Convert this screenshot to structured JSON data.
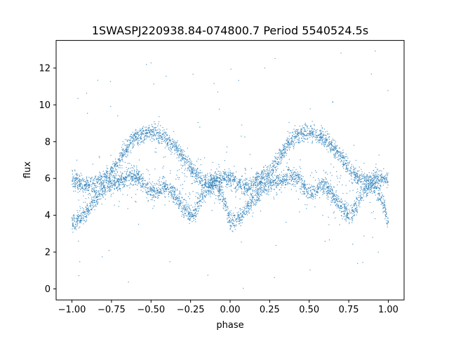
{
  "chart_data": {
    "type": "scatter",
    "title": "1SWASPJ220938.84-074800.7 Period 5540524.5s",
    "xlabel": "phase",
    "ylabel": "flux",
    "xlim": [
      -1.1,
      1.1
    ],
    "ylim": [
      -0.6,
      13.5
    ],
    "xticks": [
      -1.0,
      -0.75,
      -0.5,
      -0.25,
      0.0,
      0.25,
      0.5,
      0.75,
      1.0
    ],
    "xtick_labels": [
      "−1.00",
      "−0.75",
      "−0.50",
      "−0.25",
      "0.00",
      "0.25",
      "0.50",
      "0.75",
      "1.00"
    ],
    "yticks": [
      0,
      2,
      4,
      6,
      8,
      10,
      12
    ],
    "ytick_labels": [
      "0",
      "2",
      "4",
      "6",
      "8",
      "10",
      "12"
    ],
    "grid": false,
    "color": "#1f77b4",
    "series": [
      {
        "x": [
          -1.0,
          -0.975,
          -0.95,
          -0.925,
          -0.9,
          -0.875,
          -0.85,
          -0.825,
          -0.8,
          -0.775,
          -0.75,
          -0.725,
          -0.7,
          -0.675,
          -0.65,
          -0.625,
          -0.6,
          -0.575,
          -0.55,
          -0.525,
          -0.5,
          -0.475,
          -0.45,
          -0.425,
          -0.4,
          -0.375,
          -0.35,
          -0.325,
          -0.3,
          -0.275,
          -0.25,
          -0.225,
          -0.2,
          -0.175,
          -0.15,
          -0.125,
          -0.1,
          -0.075,
          -0.05,
          -0.025,
          0.0,
          0.025,
          0.05,
          0.075,
          0.1,
          0.125,
          0.15,
          0.175,
          0.2,
          0.225,
          0.25,
          0.275,
          0.3,
          0.325,
          0.35,
          0.375,
          0.4,
          0.425,
          0.45,
          0.475,
          0.5,
          0.525,
          0.55,
          0.575,
          0.6,
          0.625,
          0.65,
          0.675,
          0.7,
          0.725,
          0.75,
          0.775,
          0.8,
          0.825,
          0.85,
          0.875,
          0.9,
          0.925,
          0.95,
          0.975,
          1.0
        ],
        "y_upper": [
          6.0,
          5.9,
          5.7,
          5.6,
          5.5,
          5.6,
          5.7,
          5.9,
          6.0,
          6.2,
          6.3,
          6.6,
          7.0,
          7.4,
          7.7,
          8.0,
          8.2,
          8.3,
          8.4,
          8.5,
          8.5,
          8.5,
          8.4,
          8.3,
          8.1,
          7.9,
          7.7,
          7.5,
          7.2,
          6.9,
          6.6,
          6.3,
          6.1,
          5.9,
          5.8,
          5.8,
          5.9,
          6.0,
          6.0,
          6.0,
          6.0,
          5.9,
          5.7,
          5.6,
          5.5,
          5.6,
          5.7,
          5.9,
          6.0,
          6.2,
          6.3,
          6.6,
          7.0,
          7.4,
          7.7,
          8.0,
          8.2,
          8.3,
          8.4,
          8.5,
          8.5,
          8.5,
          8.4,
          8.3,
          8.1,
          7.9,
          7.7,
          7.5,
          7.2,
          6.9,
          6.6,
          6.3,
          6.1,
          5.9,
          5.8,
          5.8,
          5.9,
          6.0,
          6.0,
          6.0,
          6.0
        ],
        "y_lower": [
          3.6,
          3.7,
          3.8,
          4.0,
          4.3,
          4.6,
          4.9,
          5.2,
          5.4,
          5.6,
          5.7,
          5.8,
          5.8,
          5.9,
          6.0,
          6.1,
          6.1,
          6.0,
          5.8,
          5.5,
          5.3,
          5.2,
          5.4,
          5.6,
          5.5,
          5.3,
          5.1,
          4.8,
          4.5,
          4.3,
          4.0,
          4.1,
          4.6,
          5.0,
          5.3,
          5.6,
          5.7,
          5.4,
          5.0,
          4.5,
          3.6,
          3.7,
          3.8,
          4.0,
          4.3,
          4.6,
          4.9,
          5.2,
          5.4,
          5.6,
          5.7,
          5.8,
          5.8,
          5.9,
          6.0,
          6.1,
          6.1,
          6.0,
          5.8,
          5.5,
          5.3,
          5.2,
          5.4,
          5.6,
          5.5,
          5.3,
          5.1,
          4.8,
          4.5,
          4.3,
          4.0,
          4.1,
          4.6,
          5.0,
          5.3,
          5.6,
          5.7,
          5.4,
          5.0,
          4.5,
          3.6
        ]
      }
    ]
  }
}
